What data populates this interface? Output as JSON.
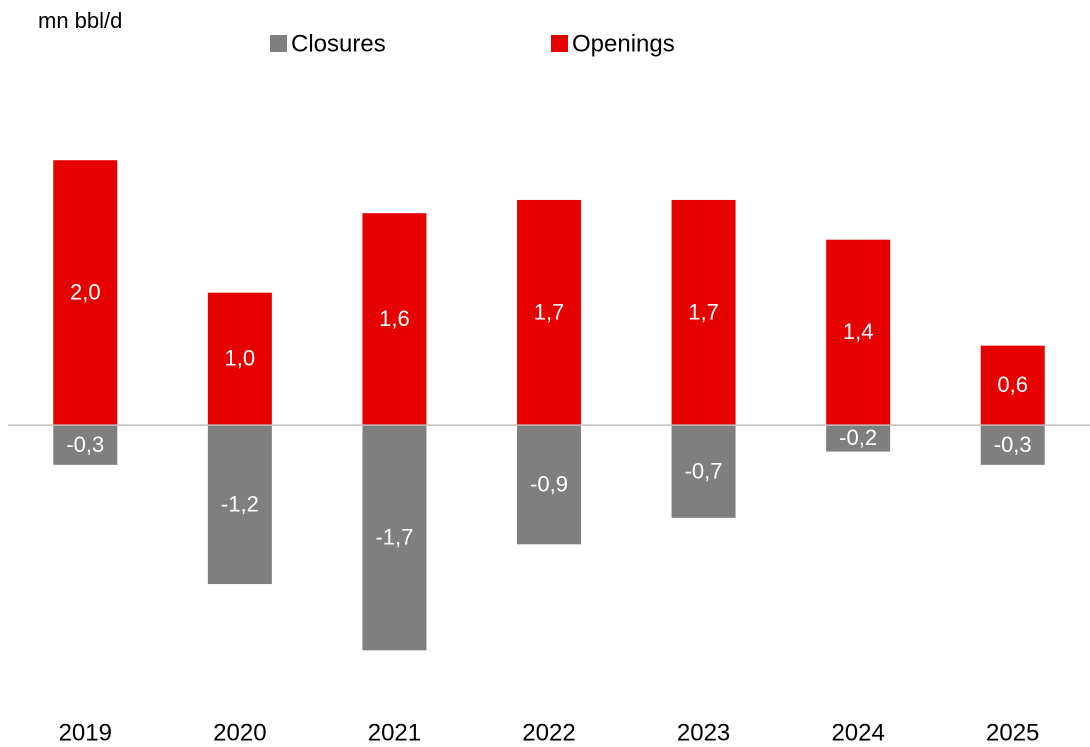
{
  "chart_data": {
    "type": "bar",
    "y_label": "mn bbl/d",
    "categories": [
      "2019",
      "2020",
      "2021",
      "2022",
      "2023",
      "2024",
      "2025"
    ],
    "series": [
      {
        "name": "Closures",
        "color": "#7f7f7f",
        "values": [
          -0.3,
          -1.2,
          -1.7,
          -0.9,
          -0.7,
          -0.2,
          -0.3
        ],
        "value_labels": [
          "-0,3",
          "-1,2",
          "-1,7",
          "-0,9",
          "-0,7",
          "-0,2",
          "-0,3"
        ]
      },
      {
        "name": "Openings",
        "color": "#e60000",
        "values": [
          2.0,
          1.0,
          1.6,
          1.7,
          1.7,
          1.4,
          0.6
        ],
        "value_labels": [
          "2,0",
          "1,0",
          "1,6",
          "1,7",
          "1,7",
          "1,4",
          "0,6"
        ]
      }
    ],
    "ylim": [
      -2.0,
      2.5
    ],
    "grid": false
  }
}
